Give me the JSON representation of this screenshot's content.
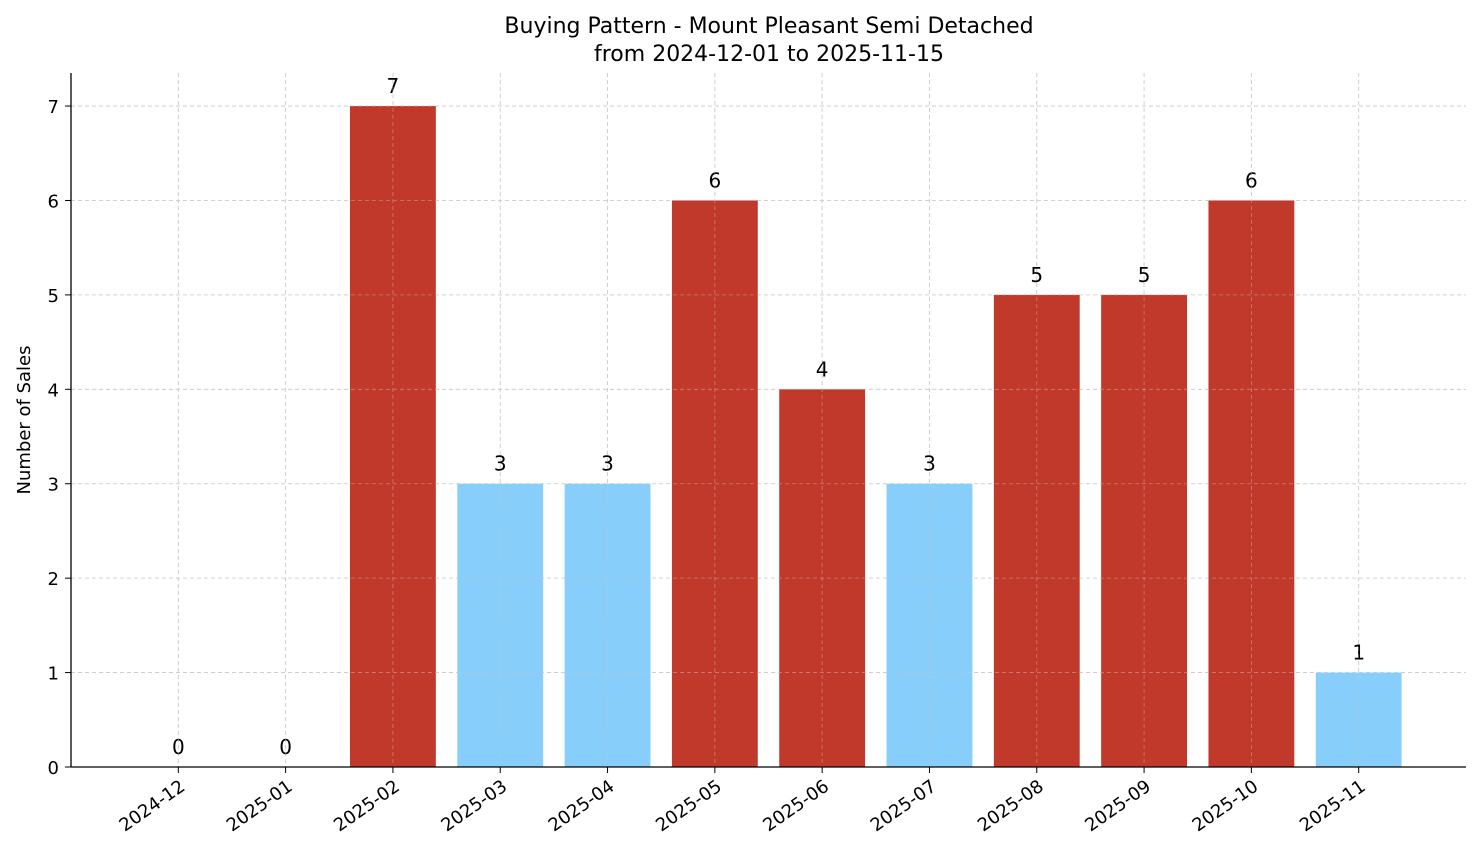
{
  "chart_data": {
    "type": "bar",
    "title": "Buying Pattern - Mount Pleasant Semi Detached",
    "subtitle": "from 2024-12-01 to 2025-11-15",
    "xlabel": "",
    "ylabel": "Number of Sales",
    "categories": [
      "2024-12",
      "2025-01",
      "2025-02",
      "2025-03",
      "2025-04",
      "2025-05",
      "2025-06",
      "2025-07",
      "2025-08",
      "2025-09",
      "2025-10",
      "2025-11"
    ],
    "values": [
      0,
      0,
      7,
      3,
      3,
      6,
      4,
      3,
      5,
      5,
      6,
      1
    ],
    "bar_colors": [
      "#87CEFA",
      "#87CEFA",
      "#C0392B",
      "#87CEFA",
      "#87CEFA",
      "#C0392B",
      "#C0392B",
      "#87CEFA",
      "#C0392B",
      "#C0392B",
      "#C0392B",
      "#87CEFA"
    ],
    "colors": {
      "high": "#C0392B",
      "low": "#87CEFA"
    },
    "yticks": [
      0,
      1,
      2,
      3,
      4,
      5,
      6,
      7
    ],
    "ylim": [
      0,
      7.35
    ],
    "grid": true,
    "data_labels": true
  }
}
